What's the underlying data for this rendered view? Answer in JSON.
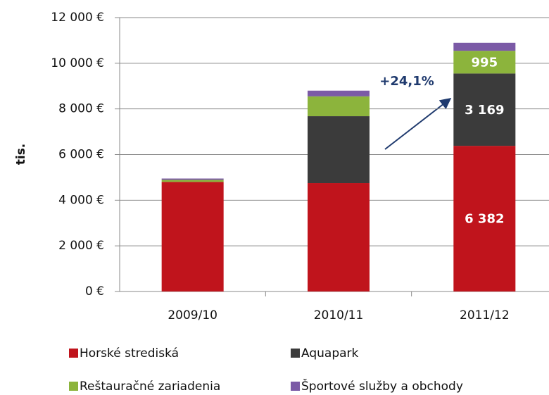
{
  "chart_data": {
    "type": "stacked_bar",
    "y_axis_label": "tis.",
    "categories": [
      "2009/10",
      "2010/11",
      "2011/12"
    ],
    "series": [
      {
        "name": "Horské strediská",
        "color": "#c0141c",
        "values": [
          4800,
          4750,
          6382
        ],
        "value_labels": [
          null,
          null,
          "6 382"
        ]
      },
      {
        "name": "Aquapark",
        "color": "#3b3b3b",
        "values": [
          0,
          2930,
          3169
        ],
        "value_labels": [
          null,
          null,
          "3 169"
        ]
      },
      {
        "name": "Reštauračné zariadenia",
        "color": "#8cb43c",
        "values": [
          90,
          870,
          995
        ],
        "value_labels": [
          null,
          null,
          "995"
        ]
      },
      {
        "name": "Športové služby a obchody",
        "color": "#7b5aa6",
        "values": [
          60,
          250,
          350
        ]
      }
    ],
    "annotations": [
      "+24,1%"
    ],
    "ylim": [
      0,
      12000
    ],
    "yticks": [
      {
        "value": 0,
        "label": "0 €"
      },
      {
        "value": 2000,
        "label": "2 000 €"
      },
      {
        "value": 4000,
        "label": "4 000 €"
      },
      {
        "value": 6000,
        "label": "6 000 €"
      },
      {
        "value": 8000,
        "label": "8 000 €"
      },
      {
        "value": 10000,
        "label": "10 000 €"
      },
      {
        "value": 12000,
        "label": "12 000 €"
      }
    ],
    "grid": true
  }
}
